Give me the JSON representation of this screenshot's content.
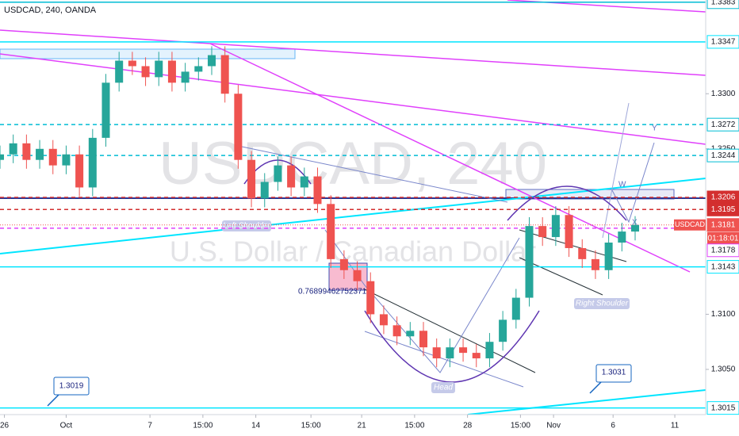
{
  "header": "USDCAD, 240, OANDA",
  "chart_data": {
    "type": "candlestick",
    "watermark": "USDCAD, 240",
    "subtitle": "U.S. Dollar / Canadian Dollar",
    "symbol": "USDCAD",
    "countdown": "01:18:01",
    "last_price": 1.3181,
    "last_price_color": "#ef5350",
    "up_color": "#26a69a",
    "down_color": "#ef5350",
    "x": [
      0,
      3,
      6,
      9,
      12,
      15,
      18,
      21,
      24,
      27,
      30,
      33,
      36,
      39,
      42,
      45,
      48,
      51,
      54,
      57,
      60,
      63,
      66,
      69,
      72,
      75,
      78,
      81,
      84,
      87,
      90,
      93,
      96,
      99,
      102,
      105,
      108,
      111,
      114,
      117,
      120,
      123,
      126,
      129,
      132,
      135,
      138,
      141,
      144
    ],
    "open": [
      1.324,
      1.3245,
      1.3255,
      1.324,
      1.325,
      1.3235,
      1.3245,
      1.3215,
      1.326,
      1.331,
      1.333,
      1.3325,
      1.3315,
      1.333,
      1.331,
      1.332,
      1.3325,
      1.3335,
      1.33,
      1.324,
      1.3205,
      1.322,
      1.3235,
      1.3215,
      1.3225,
      1.32,
      1.315,
      1.314,
      1.313,
      1.31,
      1.309,
      1.308,
      1.3085,
      1.307,
      1.306,
      1.307,
      1.3065,
      1.306,
      1.3075,
      1.3095,
      1.3115,
      1.318,
      1.317,
      1.319,
      1.316,
      1.315,
      1.314,
      1.3165,
      1.3175
    ],
    "high": [
      1.3253,
      1.3263,
      1.3263,
      1.3258,
      1.3258,
      1.3253,
      1.3253,
      1.3268,
      1.3318,
      1.3338,
      1.3338,
      1.3333,
      1.3338,
      1.3338,
      1.3328,
      1.3333,
      1.3343,
      1.3343,
      1.3308,
      1.3248,
      1.3228,
      1.3243,
      1.3243,
      1.3233,
      1.3233,
      1.3208,
      1.3158,
      1.3148,
      1.3138,
      1.3108,
      1.3098,
      1.3093,
      1.3093,
      1.3078,
      1.3078,
      1.3078,
      1.3073,
      1.3083,
      1.3103,
      1.3123,
      1.3188,
      1.3188,
      1.3198,
      1.3198,
      1.3168,
      1.3158,
      1.3173,
      1.3183,
      1.3189
    ],
    "low": [
      1.3232,
      1.3237,
      1.3232,
      1.3232,
      1.3227,
      1.3227,
      1.3207,
      1.3207,
      1.3252,
      1.3302,
      1.3317,
      1.3307,
      1.3307,
      1.3302,
      1.3302,
      1.3312,
      1.3317,
      1.3292,
      1.3232,
      1.3197,
      1.3197,
      1.3212,
      1.3207,
      1.3207,
      1.3192,
      1.3142,
      1.3132,
      1.3122,
      1.3092,
      1.3082,
      1.3072,
      1.3072,
      1.3062,
      1.3052,
      1.3052,
      1.3057,
      1.3052,
      1.3052,
      1.3067,
      1.3087,
      1.3107,
      1.3162,
      1.3162,
      1.3152,
      1.3142,
      1.3132,
      1.3132,
      1.3157,
      1.3167
    ],
    "close": [
      1.3245,
      1.3255,
      1.324,
      1.325,
      1.3235,
      1.3245,
      1.3215,
      1.326,
      1.331,
      1.333,
      1.3325,
      1.3315,
      1.333,
      1.331,
      1.332,
      1.3325,
      1.3335,
      1.33,
      1.324,
      1.3205,
      1.322,
      1.3235,
      1.3215,
      1.3225,
      1.32,
      1.315,
      1.314,
      1.313,
      1.31,
      1.309,
      1.308,
      1.3085,
      1.307,
      1.306,
      1.307,
      1.3065,
      1.306,
      1.3075,
      1.3095,
      1.3115,
      1.318,
      1.317,
      1.319,
      1.316,
      1.315,
      1.314,
      1.3165,
      1.3175,
      1.3181
    ],
    "xlim": [
      0,
      160
    ],
    "xticks": [
      {
        "value": 1,
        "label": "26"
      },
      {
        "value": 15,
        "label": "Oct"
      },
      {
        "value": 34,
        "label": "7"
      },
      {
        "value": 46,
        "label": "15:00"
      },
      {
        "value": 58,
        "label": "14"
      },
      {
        "value": 70.5,
        "label": "15:00"
      },
      {
        "value": 82,
        "label": "21"
      },
      {
        "value": 94,
        "label": "15:00"
      },
      {
        "value": 106,
        "label": "28"
      },
      {
        "value": 118,
        "label": "15:00"
      },
      {
        "value": 125.5,
        "label": "Nov"
      },
      {
        "value": 139,
        "label": "6"
      },
      {
        "value": 153,
        "label": "11"
      }
    ],
    "ylim": [
      1.3009,
      1.3385
    ],
    "yticks": [
      {
        "value": 1.33,
        "label": "1.3300"
      },
      {
        "value": 1.325,
        "label": "1.3250"
      },
      {
        "value": 1.31,
        "label": "1.3100"
      },
      {
        "value": 1.305,
        "label": "1.3050"
      }
    ],
    "levels": [
      {
        "value": 1.3383,
        "color": "#00bcd4",
        "dashed": false,
        "filled": false
      },
      {
        "value": 1.3347,
        "color": "#00e5ff",
        "dashed": false,
        "filled": false
      },
      {
        "value": 1.3272,
        "color": "#00bcd4",
        "dashed": true,
        "filled": false
      },
      {
        "value": 1.3244,
        "color": "#00bcd4",
        "dashed": true,
        "filled": false
      },
      {
        "value": 1.3206,
        "color": "#d32f2f",
        "dashed": true,
        "filled": true
      },
      {
        "value": 1.3195,
        "color": "#d32f2f",
        "dashed": true,
        "filled": true
      },
      {
        "value": 1.3178,
        "color": "#e040fb",
        "dashed": true,
        "filled": false
      },
      {
        "value": 1.3143,
        "color": "#00e5ff",
        "dashed": false,
        "filled": false
      },
      {
        "value": 1.3015,
        "color": "#00e5ff",
        "dashed": false,
        "filled": false
      }
    ],
    "annotations": {
      "left_shoulder": "Left Shoulder",
      "head": "Head",
      "right_shoulder": "Right Shoulder",
      "fib": "0.768994627523718",
      "wave_labels": [
        "W",
        "X",
        "Y"
      ],
      "callouts": [
        1.3019,
        1.3031
      ]
    }
  }
}
